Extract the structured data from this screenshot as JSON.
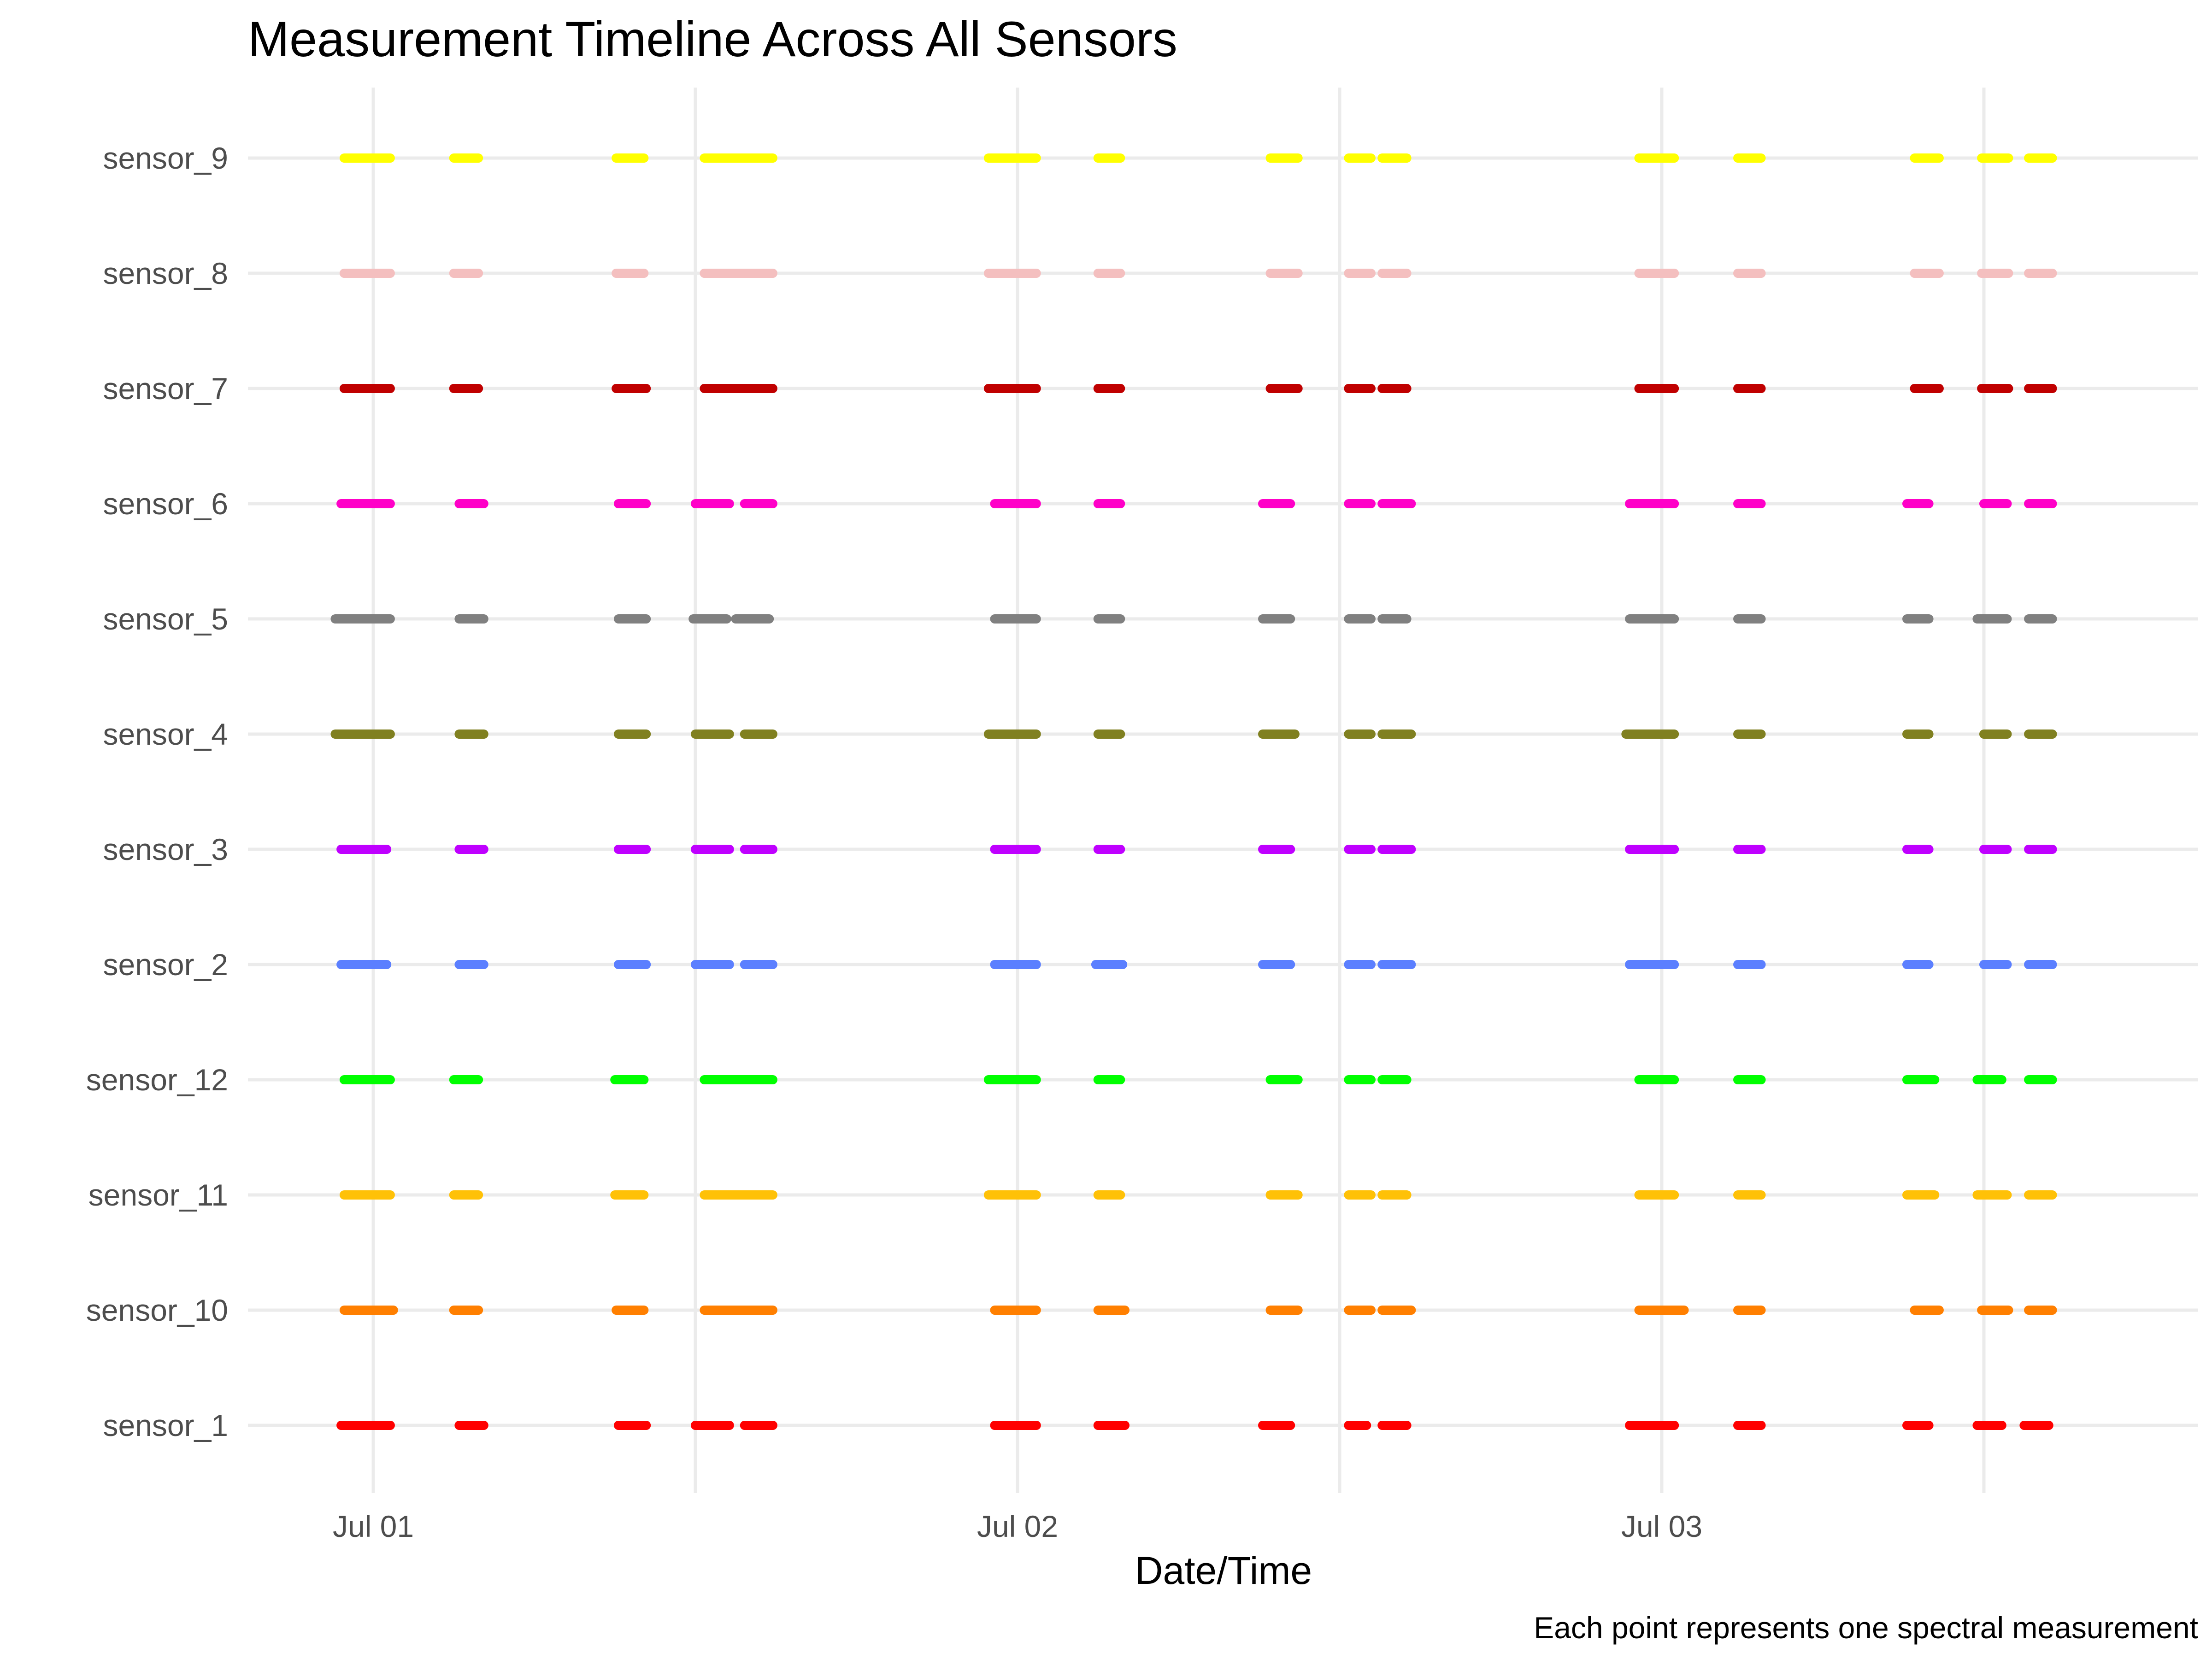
{
  "chart_data": {
    "type": "scatter",
    "title": "Measurement Timeline Across All Sensors",
    "xlabel": "Date/Time",
    "ylabel": "",
    "caption": "Each point represents one spectral measurement",
    "x_ticks": [
      {
        "value": "2024-07-01T00:00",
        "label": "Jul 01"
      },
      {
        "value": "2024-07-02T00:00",
        "label": "Jul 02"
      },
      {
        "value": "2024-07-03T00:00",
        "label": "Jul 03"
      }
    ],
    "x_minor_gridlines": [
      "2024-07-01T12:00",
      "2024-07-02T12:00",
      "2024-07-03T12:00"
    ],
    "xlim": [
      "2024-06-30T20:00",
      "2024-07-03T20:00"
    ],
    "grid": true,
    "legend": "none",
    "categories": [
      "sensor_1",
      "sensor_10",
      "sensor_11",
      "sensor_12",
      "sensor_2",
      "sensor_3",
      "sensor_4",
      "sensor_5",
      "sensor_6",
      "sensor_7",
      "sensor_8",
      "sensor_9"
    ],
    "series": [
      {
        "name": "sensor_1",
        "color": "#ff0000",
        "runs": [
          [
            "2024-06-30T22:48",
            "2024-07-01T00:38"
          ],
          [
            "2024-07-01T03:12",
            "2024-07-01T04:07"
          ],
          [
            "2024-07-01T09:08",
            "2024-07-01T10:10"
          ],
          [
            "2024-07-01T12:00",
            "2024-07-01T13:16"
          ],
          [
            "2024-07-01T13:50",
            "2024-07-01T14:53"
          ],
          [
            "2024-07-01T23:09",
            "2024-07-02T00:42"
          ],
          [
            "2024-07-02T03:00",
            "2024-07-02T04:00"
          ],
          [
            "2024-07-02T09:08",
            "2024-07-02T10:10"
          ],
          [
            "2024-07-02T12:20",
            "2024-07-02T13:00"
          ],
          [
            "2024-07-02T13:35",
            "2024-07-02T14:30"
          ],
          [
            "2024-07-02T22:48",
            "2024-07-03T00:28"
          ],
          [
            "2024-07-03T02:50",
            "2024-07-03T03:42"
          ],
          [
            "2024-07-03T09:08",
            "2024-07-03T09:57"
          ],
          [
            "2024-07-03T11:45",
            "2024-07-03T12:40"
          ],
          [
            "2024-07-03T13:30",
            "2024-07-03T14:25"
          ]
        ]
      },
      {
        "name": "sensor_10",
        "color": "#ff7f00",
        "runs": [
          [
            "2024-06-30T22:55",
            "2024-07-01T00:45"
          ],
          [
            "2024-07-01T03:00",
            "2024-07-01T03:55"
          ],
          [
            "2024-07-01T09:03",
            "2024-07-01T10:05"
          ],
          [
            "2024-07-01T12:20",
            "2024-07-01T14:53"
          ],
          [
            "2024-07-01T23:09",
            "2024-07-02T00:42"
          ],
          [
            "2024-07-02T03:00",
            "2024-07-02T04:00"
          ],
          [
            "2024-07-02T09:25",
            "2024-07-02T10:27"
          ],
          [
            "2024-07-02T12:20",
            "2024-07-02T13:10"
          ],
          [
            "2024-07-02T13:35",
            "2024-07-02T14:40"
          ],
          [
            "2024-07-02T23:09",
            "2024-07-03T00:50"
          ],
          [
            "2024-07-03T02:50",
            "2024-07-03T03:42"
          ],
          [
            "2024-07-03T09:25",
            "2024-07-03T10:20"
          ],
          [
            "2024-07-03T11:55",
            "2024-07-03T12:55"
          ],
          [
            "2024-07-03T13:40",
            "2024-07-03T14:33"
          ]
        ]
      },
      {
        "name": "sensor_11",
        "color": "#ffc107",
        "runs": [
          [
            "2024-06-30T22:55",
            "2024-07-01T00:38"
          ],
          [
            "2024-07-01T03:00",
            "2024-07-01T03:55"
          ],
          [
            "2024-07-01T09:00",
            "2024-07-01T10:05"
          ],
          [
            "2024-07-01T12:20",
            "2024-07-01T14:53"
          ],
          [
            "2024-07-01T22:55",
            "2024-07-02T00:42"
          ],
          [
            "2024-07-02T03:00",
            "2024-07-02T03:50"
          ],
          [
            "2024-07-02T09:25",
            "2024-07-02T10:27"
          ],
          [
            "2024-07-02T12:20",
            "2024-07-02T13:10"
          ],
          [
            "2024-07-02T13:35",
            "2024-07-02T14:30"
          ],
          [
            "2024-07-02T23:09",
            "2024-07-03T00:28"
          ],
          [
            "2024-07-03T02:50",
            "2024-07-03T03:42"
          ],
          [
            "2024-07-03T09:08",
            "2024-07-03T10:10"
          ],
          [
            "2024-07-03T11:45",
            "2024-07-03T12:52"
          ],
          [
            "2024-07-03T13:40",
            "2024-07-03T14:33"
          ]
        ]
      },
      {
        "name": "sensor_12",
        "color": "#00ff00",
        "runs": [
          [
            "2024-06-30T22:55",
            "2024-07-01T00:38"
          ],
          [
            "2024-07-01T03:00",
            "2024-07-01T03:55"
          ],
          [
            "2024-07-01T09:00",
            "2024-07-01T10:05"
          ],
          [
            "2024-07-01T12:20",
            "2024-07-01T14:53"
          ],
          [
            "2024-07-01T22:55",
            "2024-07-02T00:42"
          ],
          [
            "2024-07-02T03:00",
            "2024-07-02T03:50"
          ],
          [
            "2024-07-02T09:25",
            "2024-07-02T10:27"
          ],
          [
            "2024-07-02T12:20",
            "2024-07-02T13:10"
          ],
          [
            "2024-07-02T13:35",
            "2024-07-02T14:30"
          ],
          [
            "2024-07-02T23:09",
            "2024-07-03T00:28"
          ],
          [
            "2024-07-03T02:50",
            "2024-07-03T03:42"
          ],
          [
            "2024-07-03T09:08",
            "2024-07-03T10:10"
          ],
          [
            "2024-07-03T11:45",
            "2024-07-03T12:40"
          ],
          [
            "2024-07-03T13:40",
            "2024-07-03T14:33"
          ]
        ]
      },
      {
        "name": "sensor_2",
        "color": "#5b7fff",
        "runs": [
          [
            "2024-06-30T22:48",
            "2024-07-01T00:30"
          ],
          [
            "2024-07-01T03:12",
            "2024-07-01T04:07"
          ],
          [
            "2024-07-01T09:08",
            "2024-07-01T10:10"
          ],
          [
            "2024-07-01T12:00",
            "2024-07-01T13:16"
          ],
          [
            "2024-07-01T13:50",
            "2024-07-01T14:53"
          ],
          [
            "2024-07-01T23:09",
            "2024-07-02T00:42"
          ],
          [
            "2024-07-02T02:55",
            "2024-07-02T03:55"
          ],
          [
            "2024-07-02T09:08",
            "2024-07-02T10:10"
          ],
          [
            "2024-07-02T12:20",
            "2024-07-02T13:10"
          ],
          [
            "2024-07-02T13:35",
            "2024-07-02T14:40"
          ],
          [
            "2024-07-02T22:48",
            "2024-07-03T00:28"
          ],
          [
            "2024-07-03T02:50",
            "2024-07-03T03:42"
          ],
          [
            "2024-07-03T09:08",
            "2024-07-03T09:57"
          ],
          [
            "2024-07-03T12:00",
            "2024-07-03T12:52"
          ],
          [
            "2024-07-03T13:40",
            "2024-07-03T14:33"
          ]
        ]
      },
      {
        "name": "sensor_3",
        "color": "#bf00ff",
        "runs": [
          [
            "2024-06-30T22:48",
            "2024-07-01T00:30"
          ],
          [
            "2024-07-01T03:12",
            "2024-07-01T04:07"
          ],
          [
            "2024-07-01T09:08",
            "2024-07-01T10:10"
          ],
          [
            "2024-07-01T12:00",
            "2024-07-01T13:16"
          ],
          [
            "2024-07-01T13:50",
            "2024-07-01T14:53"
          ],
          [
            "2024-07-01T23:09",
            "2024-07-02T00:42"
          ],
          [
            "2024-07-02T03:00",
            "2024-07-02T03:50"
          ],
          [
            "2024-07-02T09:08",
            "2024-07-02T10:10"
          ],
          [
            "2024-07-02T12:20",
            "2024-07-02T13:10"
          ],
          [
            "2024-07-02T13:35",
            "2024-07-02T14:40"
          ],
          [
            "2024-07-02T22:48",
            "2024-07-03T00:28"
          ],
          [
            "2024-07-03T02:50",
            "2024-07-03T03:42"
          ],
          [
            "2024-07-03T09:08",
            "2024-07-03T09:57"
          ],
          [
            "2024-07-03T12:00",
            "2024-07-03T12:52"
          ],
          [
            "2024-07-03T13:40",
            "2024-07-03T14:33"
          ]
        ]
      },
      {
        "name": "sensor_4",
        "color": "#808020",
        "runs": [
          [
            "2024-06-30T22:35",
            "2024-07-01T00:38"
          ],
          [
            "2024-07-01T03:12",
            "2024-07-01T04:07"
          ],
          [
            "2024-07-01T09:08",
            "2024-07-01T10:10"
          ],
          [
            "2024-07-01T12:00",
            "2024-07-01T13:16"
          ],
          [
            "2024-07-01T13:50",
            "2024-07-01T14:53"
          ],
          [
            "2024-07-01T22:55",
            "2024-07-02T00:42"
          ],
          [
            "2024-07-02T03:00",
            "2024-07-02T03:50"
          ],
          [
            "2024-07-02T09:08",
            "2024-07-02T10:20"
          ],
          [
            "2024-07-02T12:20",
            "2024-07-02T13:10"
          ],
          [
            "2024-07-02T13:35",
            "2024-07-02T14:40"
          ],
          [
            "2024-07-02T22:40",
            "2024-07-03T00:28"
          ],
          [
            "2024-07-03T02:50",
            "2024-07-03T03:42"
          ],
          [
            "2024-07-03T09:08",
            "2024-07-03T09:57"
          ],
          [
            "2024-07-03T12:00",
            "2024-07-03T12:52"
          ],
          [
            "2024-07-03T13:40",
            "2024-07-03T14:33"
          ]
        ]
      },
      {
        "name": "sensor_5",
        "color": "#808080",
        "runs": [
          [
            "2024-06-30T22:35",
            "2024-07-01T00:38"
          ],
          [
            "2024-07-01T03:12",
            "2024-07-01T04:07"
          ],
          [
            "2024-07-01T09:08",
            "2024-07-01T10:10"
          ],
          [
            "2024-07-01T11:55",
            "2024-07-01T13:10"
          ],
          [
            "2024-07-01T13:30",
            "2024-07-01T14:45"
          ],
          [
            "2024-07-01T23:09",
            "2024-07-02T00:42"
          ],
          [
            "2024-07-02T03:00",
            "2024-07-02T03:50"
          ],
          [
            "2024-07-02T09:08",
            "2024-07-02T10:10"
          ],
          [
            "2024-07-02T12:20",
            "2024-07-02T13:10"
          ],
          [
            "2024-07-02T13:35",
            "2024-07-02T14:30"
          ],
          [
            "2024-07-02T22:48",
            "2024-07-03T00:28"
          ],
          [
            "2024-07-03T02:50",
            "2024-07-03T03:42"
          ],
          [
            "2024-07-03T09:08",
            "2024-07-03T09:57"
          ],
          [
            "2024-07-03T11:45",
            "2024-07-03T12:52"
          ],
          [
            "2024-07-03T13:40",
            "2024-07-03T14:33"
          ]
        ]
      },
      {
        "name": "sensor_6",
        "color": "#ff00c8",
        "runs": [
          [
            "2024-06-30T22:48",
            "2024-07-01T00:38"
          ],
          [
            "2024-07-01T03:12",
            "2024-07-01T04:07"
          ],
          [
            "2024-07-01T09:08",
            "2024-07-01T10:10"
          ],
          [
            "2024-07-01T12:00",
            "2024-07-01T13:16"
          ],
          [
            "2024-07-01T13:50",
            "2024-07-01T14:53"
          ],
          [
            "2024-07-01T23:09",
            "2024-07-02T00:42"
          ],
          [
            "2024-07-02T03:00",
            "2024-07-02T03:50"
          ],
          [
            "2024-07-02T09:08",
            "2024-07-02T10:10"
          ],
          [
            "2024-07-02T12:20",
            "2024-07-02T13:10"
          ],
          [
            "2024-07-02T13:35",
            "2024-07-02T14:40"
          ],
          [
            "2024-07-02T22:48",
            "2024-07-03T00:28"
          ],
          [
            "2024-07-03T02:50",
            "2024-07-03T03:42"
          ],
          [
            "2024-07-03T09:08",
            "2024-07-03T09:57"
          ],
          [
            "2024-07-03T12:00",
            "2024-07-03T12:52"
          ],
          [
            "2024-07-03T13:40",
            "2024-07-03T14:33"
          ]
        ]
      },
      {
        "name": "sensor_7",
        "color": "#c00000",
        "runs": [
          [
            "2024-06-30T22:55",
            "2024-07-01T00:38"
          ],
          [
            "2024-07-01T03:00",
            "2024-07-01T03:55"
          ],
          [
            "2024-07-01T09:03",
            "2024-07-01T10:10"
          ],
          [
            "2024-07-01T12:20",
            "2024-07-01T14:53"
          ],
          [
            "2024-07-01T22:55",
            "2024-07-02T00:42"
          ],
          [
            "2024-07-02T03:00",
            "2024-07-02T03:50"
          ],
          [
            "2024-07-02T09:25",
            "2024-07-02T10:27"
          ],
          [
            "2024-07-02T12:20",
            "2024-07-02T13:10"
          ],
          [
            "2024-07-02T13:35",
            "2024-07-02T14:30"
          ],
          [
            "2024-07-02T23:09",
            "2024-07-03T00:28"
          ],
          [
            "2024-07-03T02:50",
            "2024-07-03T03:42"
          ],
          [
            "2024-07-03T09:25",
            "2024-07-03T10:20"
          ],
          [
            "2024-07-03T11:55",
            "2024-07-03T12:55"
          ],
          [
            "2024-07-03T13:40",
            "2024-07-03T14:33"
          ]
        ]
      },
      {
        "name": "sensor_8",
        "color": "#f4bfbf",
        "runs": [
          [
            "2024-06-30T22:55",
            "2024-07-01T00:38"
          ],
          [
            "2024-07-01T03:00",
            "2024-07-01T03:55"
          ],
          [
            "2024-07-01T09:03",
            "2024-07-01T10:05"
          ],
          [
            "2024-07-01T12:20",
            "2024-07-01T14:53"
          ],
          [
            "2024-07-01T22:55",
            "2024-07-02T00:42"
          ],
          [
            "2024-07-02T03:00",
            "2024-07-02T03:50"
          ],
          [
            "2024-07-02T09:25",
            "2024-07-02T10:27"
          ],
          [
            "2024-07-02T12:20",
            "2024-07-02T13:10"
          ],
          [
            "2024-07-02T13:35",
            "2024-07-02T14:30"
          ],
          [
            "2024-07-02T23:09",
            "2024-07-03T00:28"
          ],
          [
            "2024-07-03T02:50",
            "2024-07-03T03:42"
          ],
          [
            "2024-07-03T09:25",
            "2024-07-03T10:20"
          ],
          [
            "2024-07-03T11:55",
            "2024-07-03T12:55"
          ],
          [
            "2024-07-03T13:40",
            "2024-07-03T14:33"
          ]
        ]
      },
      {
        "name": "sensor_9",
        "color": "#ffff00",
        "runs": [
          [
            "2024-06-30T22:55",
            "2024-07-01T00:38"
          ],
          [
            "2024-07-01T03:00",
            "2024-07-01T03:55"
          ],
          [
            "2024-07-01T09:03",
            "2024-07-01T10:05"
          ],
          [
            "2024-07-01T12:20",
            "2024-07-01T14:53"
          ],
          [
            "2024-07-01T22:55",
            "2024-07-02T00:42"
          ],
          [
            "2024-07-02T03:00",
            "2024-07-02T03:50"
          ],
          [
            "2024-07-02T09:25",
            "2024-07-02T10:27"
          ],
          [
            "2024-07-02T12:20",
            "2024-07-02T13:10"
          ],
          [
            "2024-07-02T13:35",
            "2024-07-02T14:30"
          ],
          [
            "2024-07-02T23:09",
            "2024-07-03T00:28"
          ],
          [
            "2024-07-03T02:50",
            "2024-07-03T03:42"
          ],
          [
            "2024-07-03T09:25",
            "2024-07-03T10:20"
          ],
          [
            "2024-07-03T11:55",
            "2024-07-03T12:55"
          ],
          [
            "2024-07-03T13:40",
            "2024-07-03T14:33"
          ]
        ]
      }
    ]
  }
}
